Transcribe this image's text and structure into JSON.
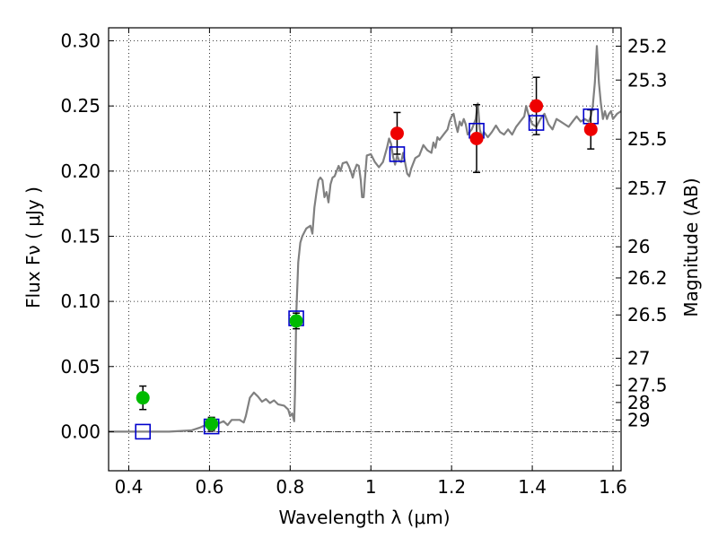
{
  "chart_data": {
    "type": "scatter",
    "title": "",
    "xlabel": "Wavelength  λ (μm)",
    "ylabel": "Flux  Fν  ( μJy )",
    "ylabel_right": "Magnitude (AB)",
    "xlim": [
      0.35,
      1.62
    ],
    "ylim": [
      -0.03,
      0.31
    ],
    "grid": true,
    "x_ticks": [
      {
        "value": 0.4,
        "label": "0.4"
      },
      {
        "value": 0.6,
        "label": "0.6"
      },
      {
        "value": 0.8,
        "label": "0.8"
      },
      {
        "value": 1.0,
        "label": "1"
      },
      {
        "value": 1.2,
        "label": "1.2"
      },
      {
        "value": 1.4,
        "label": "1.4"
      },
      {
        "value": 1.6,
        "label": "1.6"
      }
    ],
    "y_ticks": [
      {
        "value": 0.0,
        "label": "0.00"
      },
      {
        "value": 0.05,
        "label": "0.05"
      },
      {
        "value": 0.1,
        "label": "0.10"
      },
      {
        "value": 0.15,
        "label": "0.15"
      },
      {
        "value": 0.2,
        "label": "0.20"
      },
      {
        "value": 0.25,
        "label": "0.25"
      },
      {
        "value": 0.3,
        "label": "0.30"
      }
    ],
    "right_ticks": [
      {
        "flux": 0.2959,
        "label": "25.2"
      },
      {
        "flux": 0.2699,
        "label": "25.3"
      },
      {
        "flux": 0.2245,
        "label": "25.5"
      },
      {
        "flux": 0.1868,
        "label": "25.7"
      },
      {
        "flux": 0.1419,
        "label": "26"
      },
      {
        "flux": 0.118,
        "label": "26.2"
      },
      {
        "flux": 0.0896,
        "label": "26.5"
      },
      {
        "flux": 0.0564,
        "label": "27"
      },
      {
        "flux": 0.0356,
        "label": "27.5"
      },
      {
        "flux": 0.0224,
        "label": "28"
      },
      {
        "flux": 0.009,
        "label": "29"
      }
    ],
    "colors": {
      "model": "#808080",
      "photometry_green": "#00bb00",
      "photometry_red": "#ee0000",
      "model_boxes": "#0000cc",
      "grid": "#000000"
    },
    "series": [
      {
        "type": "line",
        "points": [
          [
            0.35,
            0.0
          ],
          [
            0.5,
            0.0
          ],
          [
            0.555,
            0.001
          ],
          [
            0.575,
            0.003
          ],
          [
            0.59,
            0.005
          ],
          [
            0.6,
            0.004
          ],
          [
            0.62,
            0.006
          ],
          [
            0.635,
            0.008
          ],
          [
            0.645,
            0.005
          ],
          [
            0.655,
            0.009
          ],
          [
            0.675,
            0.009
          ],
          [
            0.685,
            0.007
          ],
          [
            0.69,
            0.012
          ],
          [
            0.7,
            0.026
          ],
          [
            0.71,
            0.03
          ],
          [
            0.72,
            0.027
          ],
          [
            0.73,
            0.023
          ],
          [
            0.74,
            0.025
          ],
          [
            0.75,
            0.022
          ],
          [
            0.76,
            0.024
          ],
          [
            0.77,
            0.021
          ],
          [
            0.785,
            0.02
          ],
          [
            0.795,
            0.017
          ],
          [
            0.8,
            0.012
          ],
          [
            0.805,
            0.014
          ],
          [
            0.81,
            0.008
          ],
          [
            0.812,
            0.03
          ],
          [
            0.815,
            0.09
          ],
          [
            0.82,
            0.13
          ],
          [
            0.825,
            0.145
          ],
          [
            0.83,
            0.15
          ],
          [
            0.84,
            0.156
          ],
          [
            0.85,
            0.158
          ],
          [
            0.855,
            0.152
          ],
          [
            0.86,
            0.172
          ],
          [
            0.865,
            0.183
          ],
          [
            0.87,
            0.193
          ],
          [
            0.875,
            0.195
          ],
          [
            0.88,
            0.193
          ],
          [
            0.885,
            0.18
          ],
          [
            0.89,
            0.184
          ],
          [
            0.895,
            0.176
          ],
          [
            0.9,
            0.19
          ],
          [
            0.905,
            0.195
          ],
          [
            0.91,
            0.196
          ],
          [
            0.92,
            0.204
          ],
          [
            0.925,
            0.2
          ],
          [
            0.93,
            0.206
          ],
          [
            0.94,
            0.207
          ],
          [
            0.945,
            0.204
          ],
          [
            0.95,
            0.2
          ],
          [
            0.955,
            0.195
          ],
          [
            0.96,
            0.201
          ],
          [
            0.965,
            0.205
          ],
          [
            0.97,
            0.204
          ],
          [
            0.975,
            0.193
          ],
          [
            0.978,
            0.18
          ],
          [
            0.982,
            0.18
          ],
          [
            0.985,
            0.193
          ],
          [
            0.99,
            0.212
          ],
          [
            1.0,
            0.213
          ],
          [
            1.01,
            0.207
          ],
          [
            1.02,
            0.203
          ],
          [
            1.03,
            0.207
          ],
          [
            1.04,
            0.218
          ],
          [
            1.045,
            0.225
          ],
          [
            1.05,
            0.221
          ],
          [
            1.055,
            0.211
          ],
          [
            1.06,
            0.205
          ],
          [
            1.065,
            0.212
          ],
          [
            1.07,
            0.208
          ],
          [
            1.075,
            0.207
          ],
          [
            1.08,
            0.214
          ],
          [
            1.085,
            0.206
          ],
          [
            1.09,
            0.198
          ],
          [
            1.095,
            0.196
          ],
          [
            1.1,
            0.202
          ],
          [
            1.11,
            0.21
          ],
          [
            1.12,
            0.212
          ],
          [
            1.13,
            0.22
          ],
          [
            1.14,
            0.216
          ],
          [
            1.15,
            0.214
          ],
          [
            1.155,
            0.222
          ],
          [
            1.16,
            0.218
          ],
          [
            1.165,
            0.226
          ],
          [
            1.17,
            0.224
          ],
          [
            1.18,
            0.228
          ],
          [
            1.19,
            0.232
          ],
          [
            1.195,
            0.238
          ],
          [
            1.2,
            0.242
          ],
          [
            1.205,
            0.244
          ],
          [
            1.21,
            0.236
          ],
          [
            1.215,
            0.23
          ],
          [
            1.22,
            0.238
          ],
          [
            1.225,
            0.235
          ],
          [
            1.23,
            0.24
          ],
          [
            1.235,
            0.236
          ],
          [
            1.24,
            0.228
          ],
          [
            1.245,
            0.23
          ],
          [
            1.25,
            0.232
          ],
          [
            1.255,
            0.236
          ],
          [
            1.26,
            0.24
          ],
          [
            1.265,
            0.252
          ],
          [
            1.27,
            0.232
          ],
          [
            1.275,
            0.226
          ],
          [
            1.28,
            0.23
          ],
          [
            1.29,
            0.226
          ],
          [
            1.3,
            0.23
          ],
          [
            1.31,
            0.235
          ],
          [
            1.32,
            0.23
          ],
          [
            1.33,
            0.228
          ],
          [
            1.34,
            0.232
          ],
          [
            1.35,
            0.228
          ],
          [
            1.36,
            0.234
          ],
          [
            1.37,
            0.238
          ],
          [
            1.38,
            0.242
          ],
          [
            1.385,
            0.25
          ],
          [
            1.39,
            0.244
          ],
          [
            1.395,
            0.24
          ],
          [
            1.4,
            0.236
          ],
          [
            1.41,
            0.234
          ],
          [
            1.42,
            0.24
          ],
          [
            1.43,
            0.244
          ],
          [
            1.44,
            0.236
          ],
          [
            1.45,
            0.232
          ],
          [
            1.46,
            0.24
          ],
          [
            1.47,
            0.238
          ],
          [
            1.48,
            0.236
          ],
          [
            1.49,
            0.234
          ],
          [
            1.5,
            0.238
          ],
          [
            1.51,
            0.242
          ],
          [
            1.52,
            0.238
          ],
          [
            1.53,
            0.24
          ],
          [
            1.54,
            0.238
          ],
          [
            1.545,
            0.242
          ],
          [
            1.55,
            0.25
          ],
          [
            1.555,
            0.268
          ],
          [
            1.56,
            0.296
          ],
          [
            1.565,
            0.268
          ],
          [
            1.57,
            0.252
          ],
          [
            1.575,
            0.24
          ],
          [
            1.58,
            0.246
          ],
          [
            1.585,
            0.24
          ],
          [
            1.59,
            0.244
          ],
          [
            1.595,
            0.246
          ],
          [
            1.6,
            0.24
          ],
          [
            1.605,
            0.242
          ],
          [
            1.61,
            0.244
          ],
          [
            1.62,
            0.246
          ]
        ]
      },
      {
        "type": "square",
        "points": [
          [
            0.435,
            0.0
          ],
          [
            0.605,
            0.004
          ],
          [
            0.815,
            0.087
          ],
          [
            1.065,
            0.213
          ],
          [
            1.262,
            0.231
          ],
          [
            1.41,
            0.237
          ],
          [
            1.545,
            0.242
          ]
        ]
      },
      {
        "type": "circle-green",
        "points": [
          {
            "x": 0.435,
            "y": 0.026,
            "err": 0.009
          },
          {
            "x": 0.605,
            "y": 0.006,
            "err": 0.005
          },
          {
            "x": 0.815,
            "y": 0.085,
            "err": 0.006
          }
        ]
      },
      {
        "type": "circle-red",
        "points": [
          {
            "x": 1.065,
            "y": 0.229,
            "err": 0.016
          },
          {
            "x": 1.262,
            "y": 0.225,
            "err": 0.026
          },
          {
            "x": 1.41,
            "y": 0.25,
            "err": 0.022
          },
          {
            "x": 1.545,
            "y": 0.232,
            "err": 0.015
          }
        ]
      }
    ]
  }
}
